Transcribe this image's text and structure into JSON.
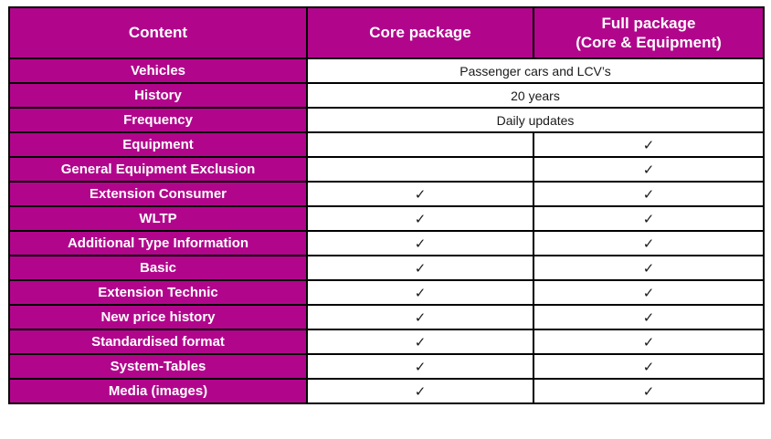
{
  "table": {
    "header": {
      "content": "Content",
      "core": "Core package",
      "full_line1": "Full package",
      "full_line2": "(Core & Equipment)"
    },
    "check_glyph": "✓",
    "rows": [
      {
        "label": "Vehicles",
        "span": true,
        "value": "Passenger cars and LCV’s"
      },
      {
        "label": "History",
        "span": true,
        "value": "20 years"
      },
      {
        "label": "Frequency",
        "span": true,
        "value": "Daily updates"
      },
      {
        "label": "Equipment",
        "span": false,
        "core": "",
        "full": "✓"
      },
      {
        "label": "General Equipment Exclusion",
        "span": false,
        "core": "",
        "full": "✓"
      },
      {
        "label": "Extension Consumer",
        "span": false,
        "core": "✓",
        "full": "✓"
      },
      {
        "label": "WLTP",
        "span": false,
        "core": "✓",
        "full": "✓"
      },
      {
        "label": "Additional Type Information",
        "span": false,
        "core": "✓",
        "full": "✓"
      },
      {
        "label": "Basic",
        "span": false,
        "core": "✓",
        "full": "✓"
      },
      {
        "label": "Extension Technic",
        "span": false,
        "core": "✓",
        "full": "✓"
      },
      {
        "label": "New price history",
        "span": false,
        "core": "✓",
        "full": "✓"
      },
      {
        "label": "Standardised format",
        "span": false,
        "core": "✓",
        "full": "✓"
      },
      {
        "label": "System-Tables",
        "span": false,
        "core": "✓",
        "full": "✓"
      },
      {
        "label": "Media (images)",
        "span": false,
        "core": "✓",
        "full": "✓"
      }
    ],
    "colors": {
      "accent_magenta": "#b1068c",
      "border_black": "#000000",
      "header_text_white": "#ffffff",
      "body_text": "#1a1a1a"
    }
  }
}
